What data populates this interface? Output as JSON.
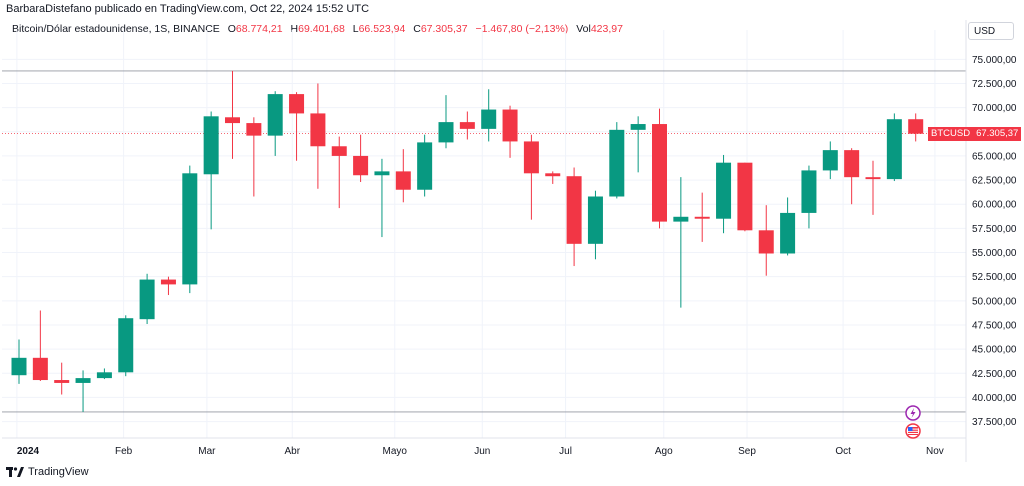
{
  "header": {
    "attribution": "BarbaraDistefano publicado en TradingView.com, Oct 22, 2024 15:52 UTC"
  },
  "legend": {
    "symbol": "Bitcoin/Dólar estadounidense, 1S, BINANCE",
    "o_key": "O",
    "o_val": "68.774,21",
    "h_key": "H",
    "h_val": "69.401,68",
    "l_key": "L",
    "l_val": "66.523,94",
    "c_key": "C",
    "c_val": "67.305,37",
    "change": "−1.467,80 (−2,13%)",
    "vol_key": "Vol",
    "vol_val": "423,97"
  },
  "currency_button": "USD",
  "price_tag": {
    "symbol": "BTCUSD",
    "value": "67.305,37"
  },
  "footer": {
    "brand": "TradingView"
  },
  "colors": {
    "up": "#089981",
    "down": "#f23645",
    "grid": "#f0f3fa",
    "axis_text": "#131722"
  },
  "chart_data": {
    "type": "candlestick",
    "interval": "1S",
    "y_axis": {
      "range": [
        35800,
        77000
      ],
      "ticks": [
        37500,
        40000,
        42500,
        45000,
        47500,
        50000,
        52500,
        55000,
        57500,
        60000,
        62500,
        65000,
        67500,
        70000,
        72500,
        75000
      ],
      "tick_labels": [
        "37.500,00",
        "40.000,00",
        "42.500,00",
        "45.000,00",
        "47.500,00",
        "50.000,00",
        "52.500,00",
        "55.000,00",
        "57.500,00",
        "60.000,00",
        "62.500,00",
        "65.000,00",
        "67.500,00",
        "70.000,00",
        "72.500,00",
        "75.000,00"
      ]
    },
    "horizontal_lines": [
      73800,
      38500
    ],
    "x_axis_labels": [
      {
        "label": "2024",
        "index": -0.1
      },
      {
        "label": "Feb",
        "index": 4.9
      },
      {
        "label": "Mar",
        "index": 8.8
      },
      {
        "label": "Abr",
        "index": 12.8
      },
      {
        "label": "Mayo",
        "index": 17.6
      },
      {
        "label": "Jun",
        "index": 21.7
      },
      {
        "label": "Jul",
        "index": 25.6
      },
      {
        "label": "Ago",
        "index": 30.2
      },
      {
        "label": "Sep",
        "index": 34.1
      },
      {
        "label": "Oct",
        "index": 38.6
      },
      {
        "label": "Nov",
        "index": 42.9
      }
    ],
    "candles": [
      {
        "o": 42300,
        "h": 46000,
        "l": 41400,
        "c": 44100
      },
      {
        "o": 44100,
        "h": 49000,
        "l": 41700,
        "c": 41800
      },
      {
        "o": 41800,
        "h": 43600,
        "l": 40300,
        "c": 41500
      },
      {
        "o": 41500,
        "h": 42800,
        "l": 38500,
        "c": 42000
      },
      {
        "o": 42000,
        "h": 43000,
        "l": 41900,
        "c": 42600
      },
      {
        "o": 42600,
        "h": 48500,
        "l": 42200,
        "c": 48200
      },
      {
        "o": 48100,
        "h": 52800,
        "l": 47600,
        "c": 52200
      },
      {
        "o": 52200,
        "h": 52500,
        "l": 50600,
        "c": 51700
      },
      {
        "o": 51700,
        "h": 64000,
        "l": 50800,
        "c": 63200
      },
      {
        "o": 63100,
        "h": 69600,
        "l": 57400,
        "c": 69100
      },
      {
        "o": 69000,
        "h": 73800,
        "l": 64700,
        "c": 68400
      },
      {
        "o": 68400,
        "h": 69000,
        "l": 60800,
        "c": 67100
      },
      {
        "o": 67100,
        "h": 71700,
        "l": 65000,
        "c": 71400
      },
      {
        "o": 71400,
        "h": 71600,
        "l": 64500,
        "c": 69400
      },
      {
        "o": 69400,
        "h": 72500,
        "l": 61600,
        "c": 66000
      },
      {
        "o": 66000,
        "h": 67000,
        "l": 59600,
        "c": 65000
      },
      {
        "o": 65000,
        "h": 67200,
        "l": 62300,
        "c": 63000
      },
      {
        "o": 63000,
        "h": 64700,
        "l": 56600,
        "c": 63400
      },
      {
        "o": 63400,
        "h": 65700,
        "l": 60200,
        "c": 61500
      },
      {
        "o": 61500,
        "h": 67200,
        "l": 60800,
        "c": 66400
      },
      {
        "o": 66400,
        "h": 71300,
        "l": 65800,
        "c": 68500
      },
      {
        "o": 68500,
        "h": 69600,
        "l": 66700,
        "c": 67800
      },
      {
        "o": 67800,
        "h": 71900,
        "l": 66500,
        "c": 69800
      },
      {
        "o": 69800,
        "h": 70200,
        "l": 64800,
        "c": 66500
      },
      {
        "o": 66500,
        "h": 67200,
        "l": 58400,
        "c": 63200
      },
      {
        "o": 63200,
        "h": 63400,
        "l": 62100,
        "c": 62900
      },
      {
        "o": 62900,
        "h": 63800,
        "l": 53600,
        "c": 55900
      },
      {
        "o": 55900,
        "h": 61400,
        "l": 54300,
        "c": 60800
      },
      {
        "o": 60800,
        "h": 68500,
        "l": 60600,
        "c": 67700
      },
      {
        "o": 67700,
        "h": 69100,
        "l": 63300,
        "c": 68300
      },
      {
        "o": 68300,
        "h": 69900,
        "l": 57500,
        "c": 58200
      },
      {
        "o": 58200,
        "h": 62800,
        "l": 49300,
        "c": 58700
      },
      {
        "o": 58700,
        "h": 61200,
        "l": 56100,
        "c": 58500
      },
      {
        "o": 58500,
        "h": 65100,
        "l": 57000,
        "c": 64300
      },
      {
        "o": 64300,
        "h": 64300,
        "l": 57200,
        "c": 57300
      },
      {
        "o": 57300,
        "h": 59900,
        "l": 52600,
        "c": 54900
      },
      {
        "o": 54900,
        "h": 60700,
        "l": 54700,
        "c": 59100
      },
      {
        "o": 59100,
        "h": 64000,
        "l": 57500,
        "c": 63500
      },
      {
        "o": 63500,
        "h": 66500,
        "l": 62600,
        "c": 65600
      },
      {
        "o": 65600,
        "h": 65800,
        "l": 60000,
        "c": 62800
      },
      {
        "o": 62800,
        "h": 64500,
        "l": 58900,
        "c": 62600
      },
      {
        "o": 62600,
        "h": 69400,
        "l": 62400,
        "c": 68800
      },
      {
        "o": 68800,
        "h": 69400,
        "l": 66500,
        "c": 67300
      }
    ],
    "last_price": 67305.37
  }
}
